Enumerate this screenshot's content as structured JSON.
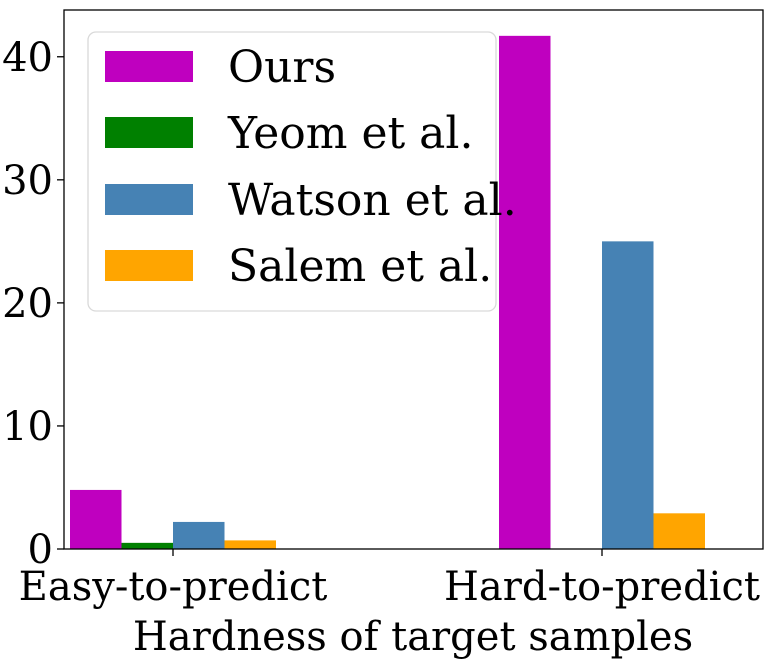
{
  "chart_data": {
    "type": "bar",
    "title": "",
    "xlabel": "Hardness of target samples",
    "ylabel": "",
    "categories": [
      "Easy-to-predict",
      "Hard-to-predict"
    ],
    "series": [
      {
        "name": "Ours",
        "color": "#bf00bf",
        "values": [
          4.8,
          41.7
        ]
      },
      {
        "name": "Yeom et al.",
        "color": "#008000",
        "values": [
          0.5,
          0
        ]
      },
      {
        "name": "Watson et al.",
        "color": "#4682b4",
        "values": [
          2.2,
          25.0
        ]
      },
      {
        "name": "Salem et al.",
        "color": "#ffa500",
        "values": [
          0.7,
          2.9
        ]
      }
    ],
    "ylim": [
      0,
      43.8
    ],
    "yticks": [
      0,
      10,
      20,
      30,
      40
    ],
    "grid": false,
    "legend_position": "top-left"
  }
}
